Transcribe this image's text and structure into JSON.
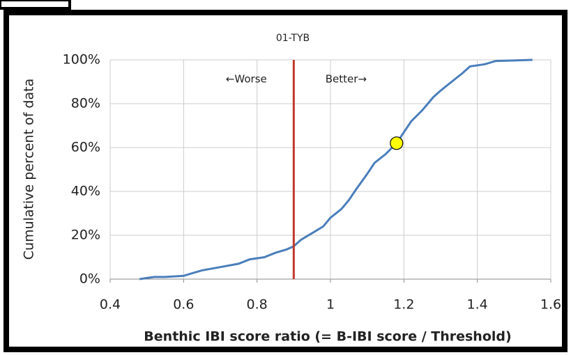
{
  "chart_data": {
    "type": "line",
    "title": "01-TYB",
    "x_label": "Benthic IBI score ratio (= B-IBI score / Threshold)",
    "y_label": "Cumulative percent of data",
    "x": [
      0.48,
      0.5,
      0.52,
      0.55,
      0.6,
      0.62,
      0.65,
      0.7,
      0.75,
      0.78,
      0.82,
      0.85,
      0.88,
      0.9,
      0.92,
      0.95,
      0.98,
      1.0,
      1.03,
      1.05,
      1.07,
      1.1,
      1.12,
      1.15,
      1.18,
      1.2,
      1.22,
      1.25,
      1.28,
      1.3,
      1.33,
      1.36,
      1.38,
      1.42,
      1.45,
      1.5,
      1.55
    ],
    "values": [
      0,
      0.5,
      1,
      1,
      1.5,
      2.5,
      4,
      5.5,
      7,
      9,
      10,
      12,
      13.5,
      15,
      18,
      21,
      24,
      28,
      32,
      36,
      41,
      48,
      53,
      57,
      62,
      67,
      72,
      77,
      83,
      86,
      90,
      94,
      97,
      98,
      99.5,
      99.7,
      100
    ],
    "color": "#4a7ebb",
    "xlim": [
      0.4,
      1.6
    ],
    "xticks": [
      0.4,
      0.6,
      0.8,
      1,
      1.2,
      1.4,
      1.6
    ],
    "ylim": [
      0,
      100
    ],
    "yticks": [
      {
        "value": 0,
        "label": "0%"
      },
      {
        "value": 20,
        "label": "20%"
      },
      {
        "value": 40,
        "label": "40%"
      },
      {
        "value": 60,
        "label": "60%"
      },
      {
        "value": 80,
        "label": "80%"
      },
      {
        "value": 100,
        "label": "100%"
      }
    ],
    "grid": true,
    "threshold": {
      "x": 0.9,
      "color": "#c0392b"
    },
    "highlight": {
      "x": 1.18,
      "y": 62,
      "color": "#ffff00"
    },
    "annotations": [
      {
        "text": "←Worse"
      },
      {
        "text": "Better→"
      }
    ]
  }
}
